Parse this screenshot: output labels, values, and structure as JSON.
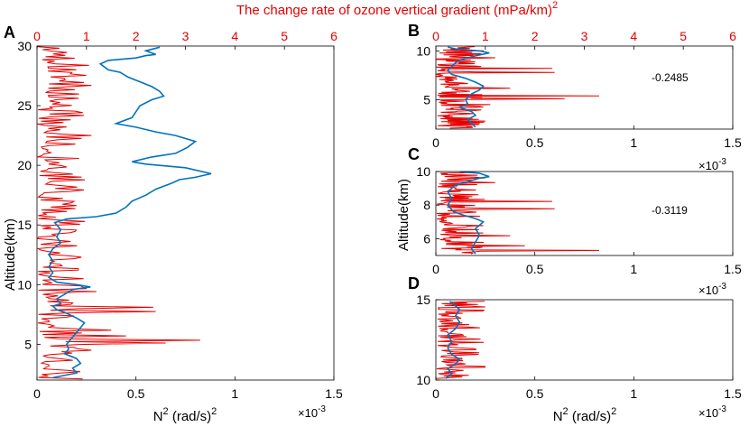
{
  "figure": {
    "top_title": "The change rate of ozone vertical gradient (mPa/km)",
    "top_title_sup": "2",
    "ylabel": "Altitude(km)",
    "xlabel_main": "N",
    "xlabel_sup": "2",
    "xlabel_unit": " (rad/s)",
    "xlabel_unit_sup": "2",
    "exp_base": "×10",
    "exp_power": "-3"
  },
  "colors": {
    "blue": "#0072bd",
    "red": "#e60000",
    "axis": "#000000"
  },
  "chart_data": [
    {
      "id": "A",
      "panel_label": "A",
      "type": "line",
      "ylim": [
        2,
        30
      ],
      "yticks": [
        5,
        10,
        15,
        20,
        25,
        30
      ],
      "xlim_bottom": [
        0,
        1.5
      ],
      "xticks_bottom": [
        0,
        0.5,
        1,
        1.5
      ],
      "xtick_labels_bottom": [
        "0",
        "0.5",
        "1",
        "1.5"
      ],
      "xlim_top": [
        0,
        6
      ],
      "xticks_top": [
        0,
        1,
        2,
        3,
        4,
        5,
        6
      ],
      "annotation": "",
      "series": [
        {
          "name": "N2 (x1e-3 rad2/s2)",
          "color": "#0072bd",
          "points": [
            [
              0.08,
              2.2
            ],
            [
              0.2,
              2.6
            ],
            [
              0.18,
              3
            ],
            [
              0.22,
              3.4
            ],
            [
              0.2,
              3.8
            ],
            [
              0.14,
              4.2
            ],
            [
              0.16,
              4.6
            ],
            [
              0.15,
              5
            ],
            [
              0.18,
              5.6
            ],
            [
              0.2,
              6
            ],
            [
              0.22,
              6.4
            ],
            [
              0.24,
              6.8
            ],
            [
              0.2,
              7.2
            ],
            [
              0.15,
              7.6
            ],
            [
              0.1,
              7.9
            ],
            [
              0.08,
              8.2
            ],
            [
              0.12,
              8.4
            ],
            [
              0.1,
              8.8
            ],
            [
              0.14,
              9.2
            ],
            [
              0.18,
              9.6
            ],
            [
              0.27,
              9.8
            ],
            [
              0.2,
              10
            ],
            [
              0.1,
              10.2
            ],
            [
              0.06,
              10.6
            ],
            [
              0.08,
              11
            ],
            [
              0.06,
              11.5
            ],
            [
              0.08,
              12
            ],
            [
              0.06,
              12.5
            ],
            [
              0.08,
              13
            ],
            [
              0.12,
              13.5
            ],
            [
              0.1,
              14
            ],
            [
              0.12,
              14.6
            ],
            [
              0.09,
              15.2
            ],
            [
              0.15,
              15.5
            ],
            [
              0.3,
              15.7
            ],
            [
              0.4,
              16
            ],
            [
              0.45,
              16.5
            ],
            [
              0.48,
              17
            ],
            [
              0.55,
              17.5
            ],
            [
              0.6,
              18
            ],
            [
              0.68,
              18.5
            ],
            [
              0.72,
              18.8
            ],
            [
              0.8,
              19
            ],
            [
              0.88,
              19.3
            ],
            [
              0.75,
              19.8
            ],
            [
              0.55,
              20.1
            ],
            [
              0.48,
              20.3
            ],
            [
              0.58,
              20.7
            ],
            [
              0.7,
              21
            ],
            [
              0.76,
              21.5
            ],
            [
              0.8,
              22
            ],
            [
              0.7,
              22.5
            ],
            [
              0.6,
              22.8
            ],
            [
              0.5,
              23.2
            ],
            [
              0.4,
              23.5
            ],
            [
              0.48,
              24
            ],
            [
              0.5,
              24.5
            ],
            [
              0.52,
              25
            ],
            [
              0.58,
              25.5
            ],
            [
              0.64,
              25.8
            ],
            [
              0.62,
              26.2
            ],
            [
              0.58,
              26.6
            ],
            [
              0.52,
              27
            ],
            [
              0.46,
              27.4
            ],
            [
              0.42,
              27.8
            ],
            [
              0.36,
              28
            ],
            [
              0.32,
              28.5
            ],
            [
              0.36,
              28.8
            ],
            [
              0.5,
              29
            ],
            [
              0.55,
              29.2
            ],
            [
              0.6,
              29.3
            ],
            [
              0.55,
              29.6
            ],
            [
              0.62,
              29.9
            ]
          ]
        },
        {
          "name": "Ozone gradient change rate (mPa/km)^2",
          "color": "#e60000",
          "scale_factor": 0.25,
          "seed": 11,
          "y_step": 0.12,
          "spikes": [
            [
              5.4,
              3.3
            ],
            [
              5.1,
              2.6
            ],
            [
              5.8,
              1.8
            ],
            [
              8.2,
              2.35
            ],
            [
              7.8,
              2.4
            ],
            [
              9.3,
              1.2
            ],
            [
              9.6,
              1.0
            ],
            [
              6.2,
              1.5
            ],
            [
              4.5,
              1.1
            ],
            [
              12.2,
              0.9
            ],
            [
              22.6,
              1.1
            ],
            [
              26.8,
              1.1
            ],
            [
              24.2,
              0.95
            ],
            [
              19.0,
              0.9
            ],
            [
              20.5,
              0.85
            ],
            [
              16.5,
              0.8
            ],
            [
              28.4,
              1.05
            ]
          ]
        }
      ]
    },
    {
      "id": "B",
      "panel_label": "B",
      "type": "line",
      "ylim": [
        2,
        10.5
      ],
      "yticks": [
        5,
        10
      ],
      "xlim_bottom": [
        0,
        1.5
      ],
      "xticks_bottom": [
        0,
        0.5,
        1,
        1.5
      ],
      "xtick_labels_bottom": [
        "0",
        "0.5",
        "1",
        "1.5"
      ],
      "xlim_top": [
        0,
        6
      ],
      "xticks_top": [
        0,
        1,
        2,
        3,
        4,
        5,
        6
      ],
      "annotation": "-0.2485",
      "series": [
        {
          "name": "N2 (x1e-3 rad2/s2)",
          "color": "#0072bd",
          "points": [
            [
              0.2,
              2.2
            ],
            [
              0.18,
              2.6
            ],
            [
              0.16,
              3
            ],
            [
              0.2,
              3.4
            ],
            [
              0.18,
              3.8
            ],
            [
              0.12,
              4.2
            ],
            [
              0.16,
              4.6
            ],
            [
              0.15,
              5
            ],
            [
              0.18,
              5.6
            ],
            [
              0.22,
              6
            ],
            [
              0.24,
              6.4
            ],
            [
              0.2,
              6.8
            ],
            [
              0.15,
              7.2
            ],
            [
              0.08,
              7.6
            ],
            [
              0.06,
              8
            ],
            [
              0.08,
              8.4
            ],
            [
              0.1,
              8.8
            ],
            [
              0.14,
              9.2
            ],
            [
              0.2,
              9.5
            ],
            [
              0.27,
              9.8
            ],
            [
              0.22,
              10
            ],
            [
              0.1,
              10.2
            ],
            [
              0.06,
              10.4
            ]
          ]
        },
        {
          "name": "Ozone gradient change rate (mPa/km)^2",
          "color": "#e60000",
          "scale_factor": 0.25,
          "seed": 23,
          "y_step": 0.06,
          "spikes": [
            [
              5.4,
              3.3
            ],
            [
              5.1,
              2.6
            ],
            [
              7.8,
              2.4
            ],
            [
              8.2,
              2.35
            ],
            [
              6.2,
              1.5
            ],
            [
              4.5,
              1.1
            ],
            [
              9.3,
              1.2
            ],
            [
              2.8,
              1.0
            ]
          ]
        }
      ]
    },
    {
      "id": "C",
      "panel_label": "C",
      "type": "line",
      "ylim": [
        5,
        10
      ],
      "yticks": [
        6,
        8,
        10
      ],
      "xlim_bottom": [
        0,
        1.5
      ],
      "xticks_bottom": [
        0,
        0.5,
        1,
        1.5
      ],
      "xtick_labels_bottom": [
        "0",
        "0.5",
        "1",
        "1.5"
      ],
      "annotation": "-0.3119",
      "series": [
        {
          "name": "N2 (x1e-3 rad2/s2)",
          "color": "#0072bd",
          "points": [
            [
              0.2,
              5.1
            ],
            [
              0.18,
              5.4
            ],
            [
              0.2,
              5.8
            ],
            [
              0.22,
              6.2
            ],
            [
              0.2,
              6.6
            ],
            [
              0.24,
              7
            ],
            [
              0.2,
              7.2
            ],
            [
              0.14,
              7.4
            ],
            [
              0.09,
              7.6
            ],
            [
              0.06,
              8
            ],
            [
              0.08,
              8.4
            ],
            [
              0.06,
              8.8
            ],
            [
              0.1,
              9.2
            ],
            [
              0.16,
              9.4
            ],
            [
              0.22,
              9.6
            ],
            [
              0.27,
              9.7
            ],
            [
              0.22,
              9.9
            ],
            [
              0.12,
              10
            ]
          ]
        },
        {
          "name": "Ozone gradient change rate (mPa/km)^2",
          "color": "#e60000",
          "scale_factor": 0.25,
          "seed": 37,
          "y_step": 0.04,
          "spikes": [
            [
              5.3,
              3.3
            ],
            [
              5.6,
              1.8
            ],
            [
              8.2,
              2.35
            ],
            [
              7.8,
              2.4
            ],
            [
              6.2,
              1.5
            ],
            [
              9.3,
              1.2
            ],
            [
              9.6,
              1.0
            ]
          ]
        }
      ]
    },
    {
      "id": "D",
      "panel_label": "D",
      "type": "line",
      "ylim": [
        10,
        15
      ],
      "yticks": [
        10,
        15
      ],
      "xlim_bottom": [
        0,
        1.5
      ],
      "xticks_bottom": [
        0,
        0.5,
        1,
        1.5
      ],
      "xtick_labels_bottom": [
        "0",
        "0.5",
        "1",
        "1.5"
      ],
      "annotation": "",
      "series": [
        {
          "name": "N2 (x1e-3 rad2/s2)",
          "color": "#0072bd",
          "points": [
            [
              0.05,
              10.1
            ],
            [
              0.08,
              10.4
            ],
            [
              0.06,
              10.7
            ],
            [
              0.1,
              11
            ],
            [
              0.12,
              11.3
            ],
            [
              0.08,
              11.6
            ],
            [
              0.06,
              12
            ],
            [
              0.08,
              12.4
            ],
            [
              0.06,
              12.8
            ],
            [
              0.1,
              13.2
            ],
            [
              0.12,
              13.6
            ],
            [
              0.1,
              14
            ],
            [
              0.12,
              14.4
            ],
            [
              0.09,
              14.7
            ],
            [
              0.07,
              14.9
            ]
          ]
        },
        {
          "name": "Ozone gradient change rate (mPa/km)^2",
          "color": "#e60000",
          "scale_factor": 0.25,
          "seed": 53,
          "y_step": 0.05,
          "spikes": [
            [
              11.2,
              0.55
            ],
            [
              11.0,
              0.6
            ],
            [
              12.2,
              0.45
            ]
          ]
        }
      ]
    }
  ]
}
